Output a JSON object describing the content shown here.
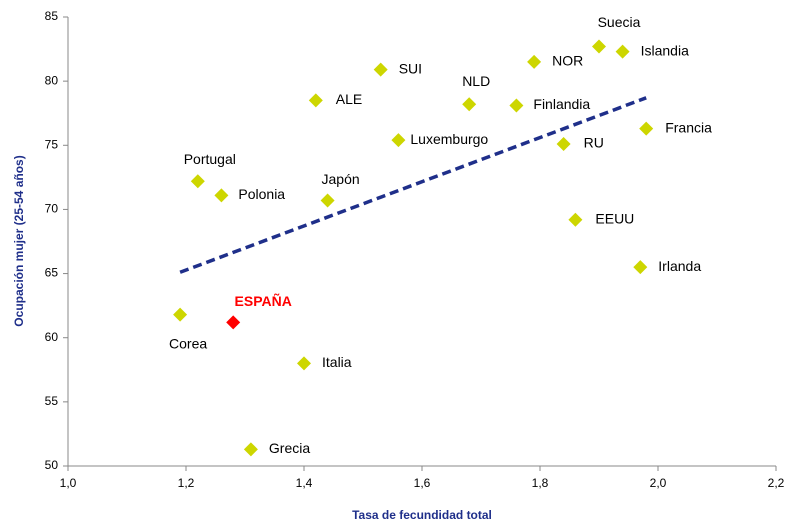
{
  "chart_data": {
    "type": "scatter",
    "x_label": "Tasa de fecundidad total",
    "y_label": "Ocupación mujer (25-54 años)",
    "xlim": [
      1.0,
      2.2
    ],
    "xticks": [
      {
        "value": 1.0,
        "label": "1,0"
      },
      {
        "value": 1.2,
        "label": "1,2"
      },
      {
        "value": 1.4,
        "label": "1,4"
      },
      {
        "value": 1.6,
        "label": "1,6"
      },
      {
        "value": 1.8,
        "label": "1,8"
      },
      {
        "value": 2.0,
        "label": "2,0"
      },
      {
        "value": 2.2,
        "label": "2,2"
      }
    ],
    "ylim": [
      50,
      85
    ],
    "yticks": [
      50,
      55,
      60,
      65,
      70,
      75,
      80,
      85
    ],
    "points": [
      {
        "label": "Suecia",
        "x": 1.9,
        "y": 82.7,
        "color": "#cdd600"
      },
      {
        "label": "Islandia",
        "x": 1.94,
        "y": 82.3,
        "color": "#cdd600"
      },
      {
        "label": "NOR",
        "x": 1.79,
        "y": 81.5,
        "color": "#cdd600"
      },
      {
        "label": "SUI",
        "x": 1.53,
        "y": 80.9,
        "color": "#cdd600"
      },
      {
        "label": "ALE",
        "x": 1.42,
        "y": 78.5,
        "color": "#cdd600"
      },
      {
        "label": "NLD",
        "x": 1.68,
        "y": 78.2,
        "color": "#cdd600"
      },
      {
        "label": "Finlandia",
        "x": 1.76,
        "y": 78.1,
        "color": "#cdd600"
      },
      {
        "label": "Francia",
        "x": 1.98,
        "y": 76.3,
        "color": "#cdd600"
      },
      {
        "label": "Luxemburgo",
        "x": 1.56,
        "y": 75.4,
        "color": "#cdd600"
      },
      {
        "label": "RU",
        "x": 1.84,
        "y": 75.1,
        "color": "#cdd600"
      },
      {
        "label": "Portugal",
        "x": 1.22,
        "y": 72.2,
        "color": "#cdd600"
      },
      {
        "label": "Polonia",
        "x": 1.26,
        "y": 71.1,
        "color": "#cdd600"
      },
      {
        "label": "Japón",
        "x": 1.44,
        "y": 70.7,
        "color": "#cdd600"
      },
      {
        "label": "EEUU",
        "x": 1.86,
        "y": 69.2,
        "color": "#cdd600"
      },
      {
        "label": "Irlanda",
        "x": 1.97,
        "y": 65.5,
        "color": "#cdd600"
      },
      {
        "label": "Corea",
        "x": 1.19,
        "y": 61.8,
        "color": "#cdd600"
      },
      {
        "label": "ESPAÑA",
        "x": 1.28,
        "y": 61.2,
        "color": "#ff0000",
        "label_color": "#ff0000"
      },
      {
        "label": "Italia",
        "x": 1.4,
        "y": 58.0,
        "color": "#cdd600"
      },
      {
        "label": "Grecia",
        "x": 1.31,
        "y": 51.3,
        "color": "#cdd600"
      }
    ],
    "trendline": {
      "color": "#1f2f8a",
      "x": [
        1.19,
        1.98
      ],
      "y": [
        65.1,
        78.7
      ]
    }
  }
}
